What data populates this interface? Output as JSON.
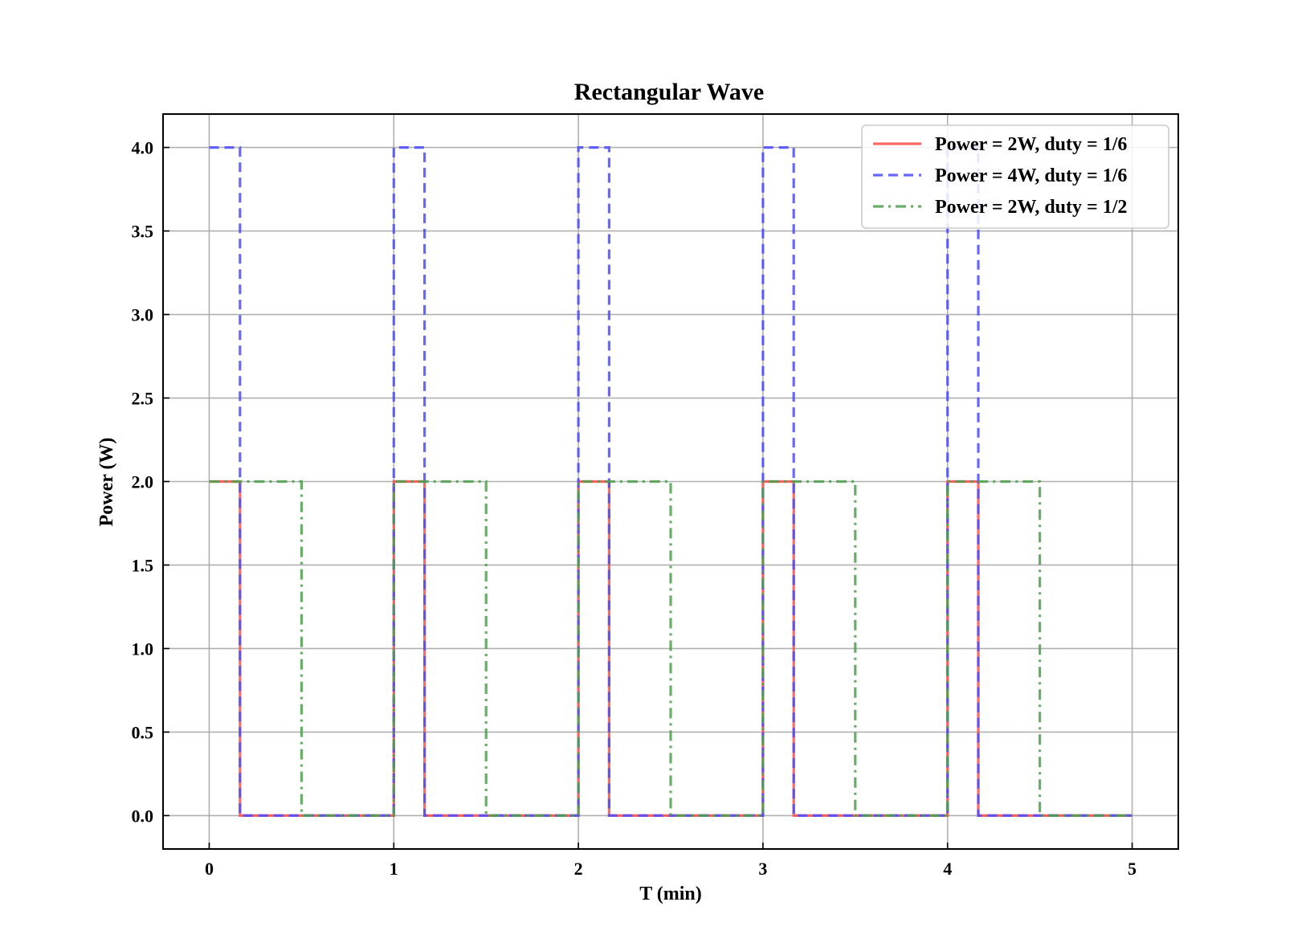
{
  "chart_data": {
    "type": "line",
    "title": "Rectangular Wave",
    "xlabel": "T (min)",
    "ylabel": "Power (W)",
    "xlim": [
      -0.25,
      5.25
    ],
    "ylim": [
      -0.2,
      4.2
    ],
    "xticks": [
      0,
      1,
      2,
      3,
      4,
      5
    ],
    "xtick_labels": [
      "0",
      "1",
      "2",
      "3",
      "4",
      "5"
    ],
    "yticks": [
      0.0,
      0.5,
      1.0,
      1.5,
      2.0,
      2.5,
      3.0,
      3.5,
      4.0
    ],
    "ytick_labels": [
      "0.0",
      "0.5",
      "1.0",
      "1.5",
      "2.0",
      "2.5",
      "3.0",
      "3.5",
      "4.0"
    ],
    "grid": true,
    "legend_position": "top-right",
    "series": [
      {
        "name": "Power = 2W, duty = 1/6",
        "color": "#ff4c4c",
        "style": "solid",
        "amplitude": 2,
        "duty": 0.1667,
        "period": 1,
        "x": [
          0,
          0.1667,
          0.1667,
          1,
          1,
          1.1667,
          1.1667,
          2,
          2,
          2.1667,
          2.1667,
          3,
          3,
          3.1667,
          3.1667,
          4,
          4,
          4.1667,
          4.1667,
          5
        ],
        "y": [
          2,
          2,
          0,
          0,
          2,
          2,
          0,
          0,
          2,
          2,
          0,
          0,
          2,
          2,
          0,
          0,
          2,
          2,
          0,
          0
        ]
      },
      {
        "name": "Power = 4W, duty = 1/6",
        "color": "#4c4cff",
        "style": "dashed",
        "amplitude": 4,
        "duty": 0.1667,
        "period": 1,
        "x": [
          0,
          0.1667,
          0.1667,
          1,
          1,
          1.1667,
          1.1667,
          2,
          2,
          2.1667,
          2.1667,
          3,
          3,
          3.1667,
          3.1667,
          4,
          4,
          4.1667,
          4.1667,
          5
        ],
        "y": [
          4,
          4,
          0,
          0,
          4,
          4,
          0,
          0,
          4,
          4,
          0,
          0,
          4,
          4,
          0,
          0,
          4,
          4,
          0,
          0
        ]
      },
      {
        "name": "Power = 2W, duty = 1/2",
        "color": "#4ca04c",
        "style": "dashdot",
        "amplitude": 2,
        "duty": 0.5,
        "period": 1,
        "x": [
          0,
          0.5,
          0.5,
          1,
          1,
          1.5,
          1.5,
          2,
          2,
          2.5,
          2.5,
          3,
          3,
          3.5,
          3.5,
          4,
          4,
          4.5,
          4.5,
          5
        ],
        "y": [
          2,
          2,
          0,
          0,
          2,
          2,
          0,
          0,
          2,
          2,
          0,
          0,
          2,
          2,
          0,
          0,
          2,
          2,
          0,
          0
        ]
      }
    ]
  }
}
